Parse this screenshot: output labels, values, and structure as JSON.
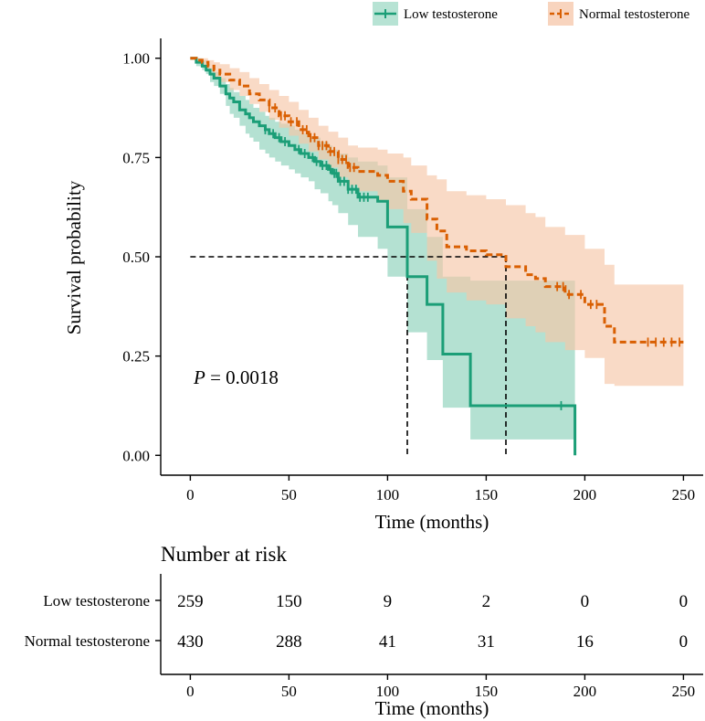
{
  "chart_data": [
    {
      "type": "line",
      "subtype": "kaplan-meier",
      "xlabel": "Time (months)",
      "ylabel": "Survival probability",
      "xlim": [
        -15,
        260
      ],
      "ylim": [
        -0.05,
        1.05
      ],
      "xticks": [
        0,
        50,
        100,
        150,
        200,
        250
      ],
      "yticks": [
        0.0,
        0.25,
        0.5,
        0.75,
        1.0
      ],
      "ytick_labels": [
        "0.00",
        "0.25",
        "0.50",
        "0.75",
        "1.00"
      ],
      "grid": false,
      "legend_position": "top-right",
      "annotation": {
        "label": "P",
        "text": " = 0.0018"
      },
      "median_lines": {
        "y": 0.5,
        "x": [
          110,
          160
        ]
      },
      "series": [
        {
          "name": "Low testosterone",
          "color": "#1b9e77",
          "fill": "#9fd9c5",
          "dash": false,
          "x": [
            0,
            3,
            6,
            8,
            10,
            12,
            15,
            18,
            20,
            22,
            25,
            28,
            30,
            32,
            35,
            38,
            40,
            43,
            46,
            50,
            53,
            56,
            60,
            63,
            66,
            70,
            72,
            75,
            80,
            85,
            95,
            100,
            110,
            120,
            128,
            142,
            195
          ],
          "y": [
            1.0,
            0.99,
            0.98,
            0.97,
            0.96,
            0.95,
            0.93,
            0.91,
            0.9,
            0.89,
            0.87,
            0.86,
            0.85,
            0.84,
            0.83,
            0.82,
            0.81,
            0.8,
            0.79,
            0.78,
            0.77,
            0.76,
            0.75,
            0.74,
            0.73,
            0.72,
            0.71,
            0.69,
            0.67,
            0.65,
            0.64,
            0.575,
            0.45,
            0.38,
            0.255,
            0.125,
            0.0
          ],
          "lower": [
            1.0,
            0.98,
            0.97,
            0.96,
            0.94,
            0.93,
            0.91,
            0.88,
            0.86,
            0.85,
            0.83,
            0.81,
            0.8,
            0.79,
            0.77,
            0.76,
            0.75,
            0.74,
            0.73,
            0.72,
            0.71,
            0.7,
            0.69,
            0.67,
            0.66,
            0.64,
            0.63,
            0.61,
            0.58,
            0.55,
            0.52,
            0.45,
            0.31,
            0.24,
            0.12,
            0.04,
            0.04
          ],
          "upper": [
            1.0,
            1.0,
            0.995,
            0.985,
            0.975,
            0.965,
            0.95,
            0.935,
            0.925,
            0.915,
            0.905,
            0.895,
            0.885,
            0.875,
            0.865,
            0.855,
            0.85,
            0.84,
            0.835,
            0.83,
            0.82,
            0.81,
            0.8,
            0.8,
            0.79,
            0.78,
            0.77,
            0.76,
            0.75,
            0.74,
            0.73,
            0.7,
            0.62,
            0.55,
            0.45,
            0.44,
            0.44
          ],
          "censored_x": [
            38,
            42,
            45,
            48,
            55,
            58,
            62,
            64,
            67,
            69,
            71,
            73,
            74,
            76,
            78,
            80,
            82,
            84,
            86,
            88,
            90,
            188
          ]
        },
        {
          "name": "Normal testosterone",
          "color": "#d95f02",
          "fill": "#f6c6a8",
          "dash": true,
          "x": [
            0,
            3,
            6,
            9,
            12,
            15,
            20,
            25,
            30,
            35,
            40,
            45,
            50,
            55,
            60,
            65,
            70,
            75,
            80,
            85,
            95,
            100,
            108,
            112,
            120,
            125,
            130,
            140,
            150,
            160,
            170,
            175,
            180,
            190,
            200,
            210,
            215,
            225,
            240,
            250
          ],
          "y": [
            1.0,
            0.995,
            0.99,
            0.98,
            0.97,
            0.96,
            0.945,
            0.93,
            0.91,
            0.895,
            0.875,
            0.855,
            0.84,
            0.82,
            0.8,
            0.78,
            0.765,
            0.745,
            0.725,
            0.715,
            0.705,
            0.69,
            0.665,
            0.645,
            0.595,
            0.565,
            0.525,
            0.515,
            0.505,
            0.475,
            0.455,
            0.445,
            0.425,
            0.405,
            0.38,
            0.325,
            0.285,
            0.285,
            0.285,
            0.285
          ],
          "lower": [
            1.0,
            0.99,
            0.98,
            0.97,
            0.95,
            0.94,
            0.92,
            0.905,
            0.885,
            0.865,
            0.845,
            0.825,
            0.805,
            0.785,
            0.765,
            0.745,
            0.725,
            0.7,
            0.68,
            0.665,
            0.64,
            0.62,
            0.585,
            0.56,
            0.49,
            0.445,
            0.41,
            0.39,
            0.38,
            0.345,
            0.325,
            0.31,
            0.285,
            0.265,
            0.245,
            0.18,
            0.175,
            0.175,
            0.175,
            0.175
          ],
          "upper": [
            1.0,
            1.0,
            1.0,
            0.995,
            0.99,
            0.985,
            0.975,
            0.965,
            0.95,
            0.935,
            0.92,
            0.905,
            0.89,
            0.87,
            0.85,
            0.83,
            0.815,
            0.8,
            0.78,
            0.775,
            0.77,
            0.76,
            0.75,
            0.73,
            0.705,
            0.695,
            0.665,
            0.655,
            0.645,
            0.63,
            0.61,
            0.6,
            0.575,
            0.555,
            0.52,
            0.48,
            0.43,
            0.43,
            0.43,
            0.43
          ],
          "censored_x": [
            40,
            43,
            46,
            48,
            51,
            54,
            57,
            59,
            61,
            63,
            65,
            67,
            69,
            71,
            73,
            75,
            77,
            79,
            81,
            83,
            186,
            189,
            192,
            198,
            203,
            206,
            232,
            236,
            240,
            244,
            248
          ]
        }
      ]
    },
    {
      "type": "table",
      "title": "Number at risk",
      "xlabel": "Time (months)",
      "xlim": [
        -15,
        260
      ],
      "xticks": [
        0,
        50,
        100,
        150,
        200,
        250
      ],
      "columns": [
        0,
        50,
        100,
        150,
        200,
        250
      ],
      "rows": [
        {
          "name": "Low testosterone",
          "values": [
            "259",
            "150",
            "9",
            "2",
            "0",
            "0"
          ]
        },
        {
          "name": "Normal testosterone",
          "values": [
            "430",
            "288",
            "41",
            "31",
            "16",
            "0"
          ]
        }
      ]
    }
  ]
}
